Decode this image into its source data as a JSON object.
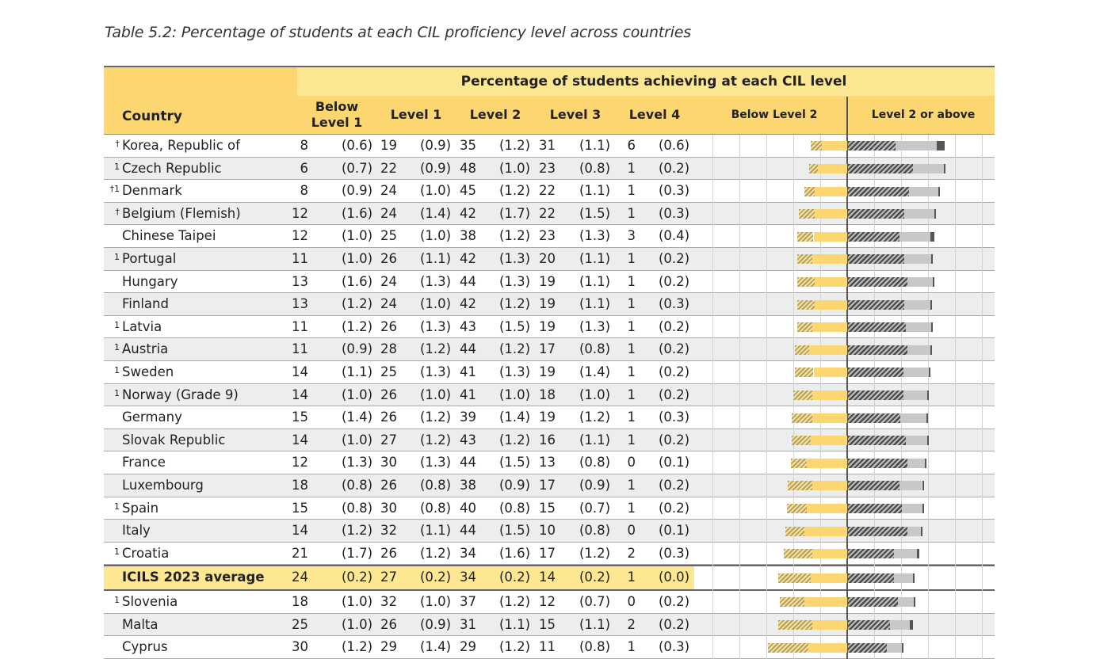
{
  "title": "Table 5.2: Percentage of students at each CIL proficiency level across countries",
  "header": {
    "group": "Percentage of students achieving at each CIL level",
    "country": "Country",
    "below_level1": "Below Level 1",
    "level1": "Level 1",
    "level2": "Level 2",
    "level3": "Level 3",
    "level4": "Level 4",
    "chart_below": "Below Level 2",
    "chart_above": "Level 2 or above"
  },
  "rows": [
    {
      "mark": "†",
      "country": "Korea, Republic of",
      "bl1": "8",
      "bl1_se": "(0.6)",
      "l1": "19",
      "l1_se": "(0.9)",
      "l2": "35",
      "l2_se": "(1.2)",
      "l3": "31",
      "l3_se": "(1.1)",
      "l4": "6",
      "l4_se": "(0.6)"
    },
    {
      "mark": "1",
      "country": "Czech Republic",
      "bl1": "6",
      "bl1_se": "(0.7)",
      "l1": "22",
      "l1_se": "(0.9)",
      "l2": "48",
      "l2_se": "(1.0)",
      "l3": "23",
      "l3_se": "(0.8)",
      "l4": "1",
      "l4_se": "(0.2)"
    },
    {
      "mark": "†1",
      "country": "Denmark",
      "bl1": "8",
      "bl1_se": "(0.9)",
      "l1": "24",
      "l1_se": "(1.0)",
      "l2": "45",
      "l2_se": "(1.2)",
      "l3": "22",
      "l3_se": "(1.1)",
      "l4": "1",
      "l4_se": "(0.3)"
    },
    {
      "mark": "†",
      "country": "Belgium (Flemish)",
      "bl1": "12",
      "bl1_se": "(1.6)",
      "l1": "24",
      "l1_se": "(1.4)",
      "l2": "42",
      "l2_se": "(1.7)",
      "l3": "22",
      "l3_se": "(1.5)",
      "l4": "1",
      "l4_se": "(0.3)"
    },
    {
      "mark": "",
      "country": "Chinese Taipei",
      "bl1": "12",
      "bl1_se": "(1.0)",
      "l1": "25",
      "l1_se": "(1.0)",
      "l2": "38",
      "l2_se": "(1.2)",
      "l3": "23",
      "l3_se": "(1.3)",
      "l4": "3",
      "l4_se": "(0.4)"
    },
    {
      "mark": "1",
      "country": "Portugal",
      "bl1": "11",
      "bl1_se": "(1.0)",
      "l1": "26",
      "l1_se": "(1.1)",
      "l2": "42",
      "l2_se": "(1.3)",
      "l3": "20",
      "l3_se": "(1.1)",
      "l4": "1",
      "l4_se": "(0.2)"
    },
    {
      "mark": "",
      "country": "Hungary",
      "bl1": "13",
      "bl1_se": "(1.6)",
      "l1": "24",
      "l1_se": "(1.3)",
      "l2": "44",
      "l2_se": "(1.3)",
      "l3": "19",
      "l3_se": "(1.1)",
      "l4": "1",
      "l4_se": "(0.2)"
    },
    {
      "mark": "",
      "country": "Finland",
      "bl1": "13",
      "bl1_se": "(1.2)",
      "l1": "24",
      "l1_se": "(1.0)",
      "l2": "42",
      "l2_se": "(1.2)",
      "l3": "19",
      "l3_se": "(1.1)",
      "l4": "1",
      "l4_se": "(0.3)"
    },
    {
      "mark": "1",
      "country": "Latvia",
      "bl1": "11",
      "bl1_se": "(1.2)",
      "l1": "26",
      "l1_se": "(1.3)",
      "l2": "43",
      "l2_se": "(1.5)",
      "l3": "19",
      "l3_se": "(1.3)",
      "l4": "1",
      "l4_se": "(0.2)"
    },
    {
      "mark": "1",
      "country": "Austria",
      "bl1": "11",
      "bl1_se": "(0.9)",
      "l1": "28",
      "l1_se": "(1.2)",
      "l2": "44",
      "l2_se": "(1.2)",
      "l3": "17",
      "l3_se": "(0.8)",
      "l4": "1",
      "l4_se": "(0.2)"
    },
    {
      "mark": "1",
      "country": "Sweden",
      "bl1": "14",
      "bl1_se": "(1.1)",
      "l1": "25",
      "l1_se": "(1.3)",
      "l2": "41",
      "l2_se": "(1.3)",
      "l3": "19",
      "l3_se": "(1.4)",
      "l4": "1",
      "l4_se": "(0.2)"
    },
    {
      "mark": "1",
      "country": "Norway (Grade 9)",
      "bl1": "14",
      "bl1_se": "(1.0)",
      "l1": "26",
      "l1_se": "(1.0)",
      "l2": "41",
      "l2_se": "(1.0)",
      "l3": "18",
      "l3_se": "(1.0)",
      "l4": "1",
      "l4_se": "(0.2)"
    },
    {
      "mark": "",
      "country": "Germany",
      "bl1": "15",
      "bl1_se": "(1.4)",
      "l1": "26",
      "l1_se": "(1.2)",
      "l2": "39",
      "l2_se": "(1.4)",
      "l3": "19",
      "l3_se": "(1.2)",
      "l4": "1",
      "l4_se": "(0.3)"
    },
    {
      "mark": "",
      "country": "Slovak Republic",
      "bl1": "14",
      "bl1_se": "(1.0)",
      "l1": "27",
      "l1_se": "(1.2)",
      "l2": "43",
      "l2_se": "(1.2)",
      "l3": "16",
      "l3_se": "(1.1)",
      "l4": "1",
      "l4_se": "(0.2)"
    },
    {
      "mark": "",
      "country": "France",
      "bl1": "12",
      "bl1_se": "(1.3)",
      "l1": "30",
      "l1_se": "(1.3)",
      "l2": "44",
      "l2_se": "(1.5)",
      "l3": "13",
      "l3_se": "(0.8)",
      "l4": "0",
      "l4_se": "(0.1)"
    },
    {
      "mark": "",
      "country": "Luxembourg",
      "bl1": "18",
      "bl1_se": "(0.8)",
      "l1": "26",
      "l1_se": "(0.8)",
      "l2": "38",
      "l2_se": "(0.9)",
      "l3": "17",
      "l3_se": "(0.9)",
      "l4": "1",
      "l4_se": "(0.2)"
    },
    {
      "mark": "1",
      "country": "Spain",
      "bl1": "15",
      "bl1_se": "(0.8)",
      "l1": "30",
      "l1_se": "(0.8)",
      "l2": "40",
      "l2_se": "(0.8)",
      "l3": "15",
      "l3_se": "(0.7)",
      "l4": "1",
      "l4_se": "(0.2)"
    },
    {
      "mark": "",
      "country": "Italy",
      "bl1": "14",
      "bl1_se": "(1.2)",
      "l1": "32",
      "l1_se": "(1.1)",
      "l2": "44",
      "l2_se": "(1.5)",
      "l3": "10",
      "l3_se": "(0.8)",
      "l4": "0",
      "l4_se": "(0.1)"
    },
    {
      "mark": "1",
      "country": "Croatia",
      "bl1": "21",
      "bl1_se": "(1.7)",
      "l1": "26",
      "l1_se": "(1.2)",
      "l2": "34",
      "l2_se": "(1.6)",
      "l3": "17",
      "l3_se": "(1.2)",
      "l4": "2",
      "l4_se": "(0.3)"
    },
    {
      "mark": "",
      "country": "ICILS 2023 average",
      "bl1": "24",
      "bl1_se": "(0.2)",
      "l1": "27",
      "l1_se": "(0.2)",
      "l2": "34",
      "l2_se": "(0.2)",
      "l3": "14",
      "l3_se": "(0.2)",
      "l4": "1",
      "l4_se": "(0.0)",
      "is_average": true
    },
    {
      "mark": "1",
      "country": "Slovenia",
      "bl1": "18",
      "bl1_se": "(1.0)",
      "l1": "32",
      "l1_se": "(1.0)",
      "l2": "37",
      "l2_se": "(1.2)",
      "l3": "12",
      "l3_se": "(0.7)",
      "l4": "0",
      "l4_se": "(0.2)"
    },
    {
      "mark": "",
      "country": "Malta",
      "bl1": "25",
      "bl1_se": "(1.0)",
      "l1": "26",
      "l1_se": "(0.9)",
      "l2": "31",
      "l2_se": "(1.1)",
      "l3": "15",
      "l3_se": "(1.1)",
      "l4": "2",
      "l4_se": "(0.2)"
    },
    {
      "mark": "",
      "country": "Cyprus",
      "bl1": "30",
      "bl1_se": "(1.2)",
      "l1": "29",
      "l1_se": "(1.4)",
      "l2": "29",
      "l2_se": "(1.2)",
      "l3": "11",
      "l3_se": "(0.8)",
      "l4": "1",
      "l4_se": "(0.3)"
    }
  ],
  "colors": {
    "header_dark": "#fcd671",
    "header_light": "#fde792",
    "row_shade": "#eceeee",
    "below_level1_hatch": "#b8a05a",
    "level1": "#fcd671",
    "level2_hatch": "#4a4a4a",
    "level3": "#c8c8c8",
    "level4": "#555555"
  }
}
